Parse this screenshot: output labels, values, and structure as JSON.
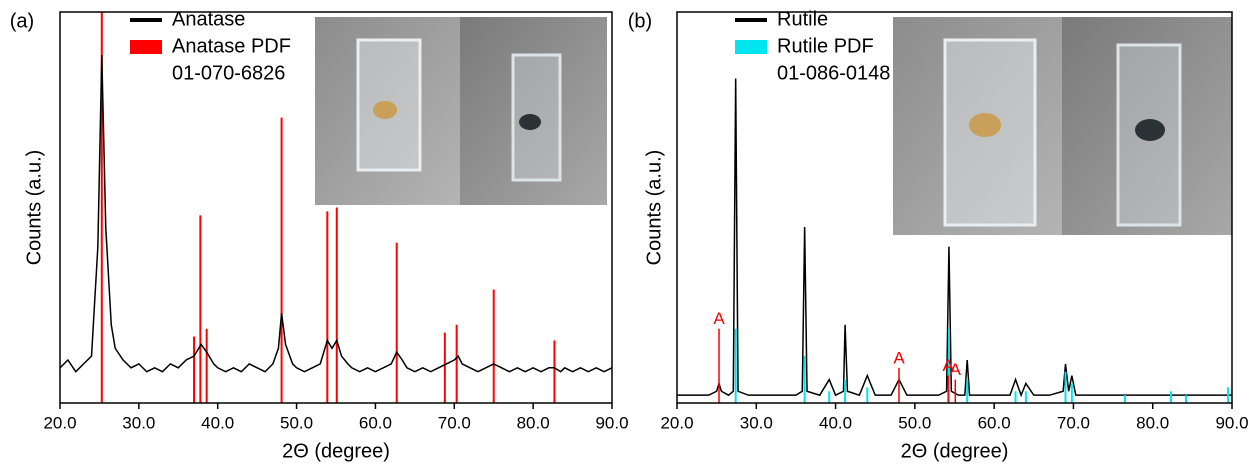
{
  "chart_data": [
    {
      "type": "line",
      "label": "(a)",
      "x_label": "2Θ (degree)",
      "y_label": "Counts (a.u.)",
      "xlim": [
        20,
        90
      ],
      "ylim": [
        0,
        100
      ],
      "xticks": [
        {
          "value": 20,
          "label": "20.0"
        },
        {
          "value": 30,
          "label": "30.0"
        },
        {
          "value": 40,
          "label": "40.0"
        },
        {
          "value": 50,
          "label": "50.0"
        },
        {
          "value": 60,
          "label": "60.0"
        },
        {
          "value": 70,
          "label": "70.0"
        },
        {
          "value": 80,
          "label": "80.0"
        },
        {
          "value": 90,
          "label": "90.0"
        }
      ],
      "legend_note": "01-070-6826",
      "series": [
        {
          "name": "Anatase",
          "style": "line",
          "color": "#000000",
          "x": [
            20,
            21,
            22,
            23,
            24,
            24.8,
            25.3,
            25.8,
            26.5,
            27,
            28,
            29,
            30,
            31,
            32,
            33,
            34,
            35,
            36,
            37,
            37.9,
            38.6,
            39.5,
            40,
            41,
            42,
            43,
            44,
            45,
            46,
            47,
            47.7,
            48.1,
            48.6,
            49.5,
            50,
            51,
            52,
            53,
            53.9,
            54.5,
            55.1,
            55.7,
            56.5,
            57,
            58,
            59,
            60,
            61,
            62,
            62.7,
            63.4,
            64,
            65,
            66,
            67,
            68,
            69,
            70,
            70.5,
            71,
            72,
            73,
            74,
            75,
            76,
            77,
            78,
            79,
            80,
            81,
            82,
            82.7,
            83.5,
            84,
            85,
            86,
            87,
            88,
            89,
            90
          ],
          "values": [
            9,
            11,
            8,
            10,
            12,
            40,
            89,
            45,
            20,
            14,
            11,
            9,
            10,
            8,
            9,
            8,
            10,
            9,
            11,
            12,
            15,
            13,
            10,
            9,
            8,
            9,
            8,
            10,
            9,
            8,
            10,
            14,
            23,
            15,
            10,
            9,
            8,
            9,
            10,
            16,
            14,
            16,
            12,
            10,
            9,
            8,
            9,
            8,
            9,
            10,
            13,
            11,
            9,
            8,
            9,
            8,
            9,
            10,
            11,
            12,
            10,
            9,
            8,
            9,
            10,
            9,
            8,
            9,
            8,
            9,
            8,
            9,
            9,
            8,
            9,
            8,
            9,
            8,
            9,
            8,
            9
          ]
        },
        {
          "name": "Anatase PDF",
          "style": "stick",
          "color": "#ff0000",
          "x": [
            25.3,
            37.0,
            37.8,
            38.6,
            48.1,
            53.9,
            55.1,
            62.7,
            68.8,
            70.3,
            75.0,
            82.7
          ],
          "values": [
            100,
            17,
            48,
            19,
            73,
            49,
            50,
            41,
            18,
            20,
            29,
            16
          ]
        }
      ]
    },
    {
      "type": "line",
      "label": "(b)",
      "x_label": "2Θ (degree)",
      "y_label": "Counts (a.u.)",
      "xlim": [
        20,
        90
      ],
      "ylim": [
        0,
        100
      ],
      "xticks": [
        {
          "value": 20,
          "label": "20.0"
        },
        {
          "value": 30,
          "label": "30.0"
        },
        {
          "value": 40,
          "label": "40.0"
        },
        {
          "value": 50,
          "label": "50.0"
        },
        {
          "value": 60,
          "label": "60.0"
        },
        {
          "value": 70,
          "label": "70.0"
        },
        {
          "value": 80,
          "label": "80.0"
        },
        {
          "value": 90,
          "label": "90.0"
        }
      ],
      "legend_note": "01-086-0148",
      "series": [
        {
          "name": "Rutile",
          "style": "line",
          "color": "#000000",
          "x": [
            20,
            22,
            24,
            25,
            25.3,
            25.6,
            26.5,
            27.1,
            27.4,
            27.7,
            29,
            31,
            33,
            35,
            35.8,
            36.1,
            36.4,
            38,
            39.2,
            40,
            41,
            41.2,
            41.5,
            43,
            44,
            45,
            47,
            48,
            49,
            51,
            53,
            54,
            54.3,
            54.6,
            55.5,
            56.3,
            56.6,
            56.9,
            58,
            60,
            62,
            62.7,
            63.4,
            64,
            65,
            67,
            68.7,
            69,
            69.4,
            69.8,
            70.3,
            72,
            75,
            78,
            80,
            82,
            85,
            88,
            90
          ],
          "values": [
            2,
            2,
            2,
            3,
            5,
            3,
            2,
            3,
            83,
            3,
            2,
            2,
            2,
            2,
            3,
            45,
            3,
            2,
            6,
            2,
            3,
            20,
            3,
            2,
            7,
            2,
            2,
            6,
            2,
            2,
            2,
            3,
            40,
            3,
            2,
            2,
            11,
            2,
            2,
            2,
            2,
            6,
            2,
            5,
            2,
            2,
            3,
            10,
            3,
            7,
            2,
            2,
            2,
            2,
            2,
            2,
            2,
            2,
            2
          ]
        },
        {
          "name": "Rutile PDF",
          "style": "stick",
          "color": "#00e5ee",
          "x": [
            27.4,
            36.1,
            39.2,
            41.2,
            44.0,
            54.3,
            56.6,
            62.7,
            64.0,
            69.0,
            69.8,
            76.5,
            82.3,
            84.2,
            89.5
          ],
          "values": [
            19,
            12,
            3,
            6,
            4,
            19,
            6,
            3,
            3,
            8,
            5,
            2,
            3,
            2,
            4
          ]
        }
      ],
      "annotations": [
        {
          "text": "A",
          "x": 25.3,
          "y": 19
        },
        {
          "text": "A",
          "x": 48.0,
          "y": 9
        },
        {
          "text": "A",
          "x": 54.2,
          "y": 7
        },
        {
          "text": "A",
          "x": 55.1,
          "y": 6
        }
      ]
    }
  ]
}
